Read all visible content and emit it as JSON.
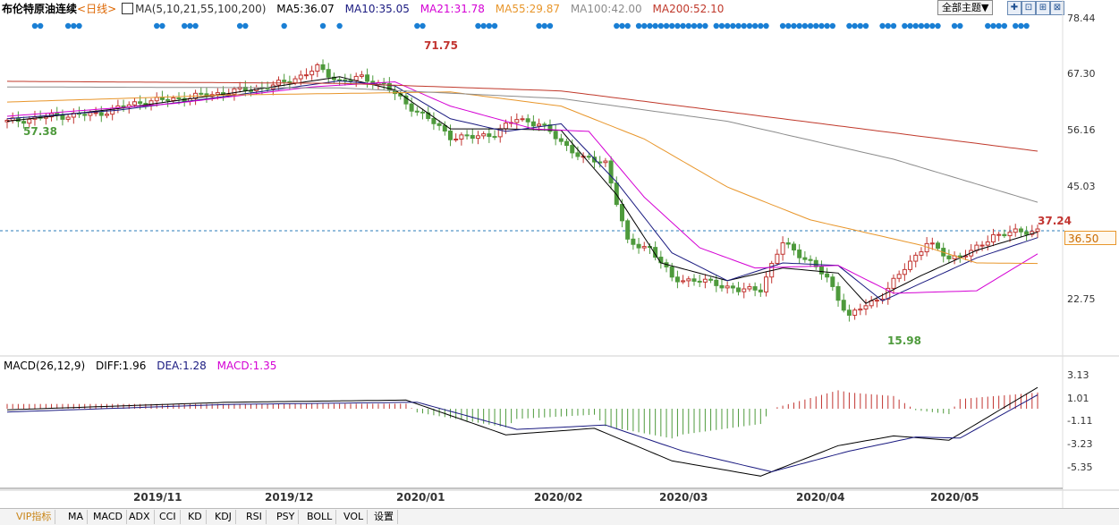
{
  "header": {
    "title": "布伦特原油连续",
    "period": "<日线>",
    "ma_label": "MA(5,10,21,55,100,200)",
    "ma5": "MA5:36.07",
    "ma10": "MA10:35.05",
    "ma21": "MA21:31.78",
    "ma55": "MA55:29.87",
    "ma100": "MA100:42.00",
    "ma200": "MA200:52.10"
  },
  "toolbar": {
    "theme_label": "全部主题▼",
    "buttons": [
      "✚",
      "⊡",
      "⊞",
      "⊠"
    ]
  },
  "colors": {
    "ma5": "#000000",
    "ma10": "#1a1a80",
    "ma21": "#d400d4",
    "ma55": "#e8962b",
    "ma100": "#8c8c8c",
    "ma200": "#c0392b",
    "up": "#c23531",
    "down": "#4e9a3c",
    "dot": "#1a7fd4"
  },
  "price_axis": [
    "78.44",
    "67.30",
    "56.16",
    "45.03",
    "22.75"
  ],
  "current_price_label": "36.50",
  "annotations": {
    "high": "71.75",
    "low": "15.98",
    "start_low": "57.38",
    "last_high": "37.24"
  },
  "macd": {
    "header": "MACD(26,12,9)",
    "diff": "DIFF:1.96",
    "dea": "DEA:1.28",
    "macd": "MACD:1.35",
    "axis": [
      "3.13",
      "1.01",
      "-1.11",
      "-3.23",
      "-5.35"
    ]
  },
  "x_axis": [
    "2019/11",
    "2019/12",
    "2020/01",
    "2020/02",
    "2020/03",
    "2020/04",
    "2020/05"
  ],
  "tabs": [
    "VIP指标",
    "MA",
    "MACD",
    "ADX",
    "CCI",
    "KD",
    "KDJ",
    "RSI",
    "PSY",
    "BOLL",
    "VOL",
    "设置"
  ],
  "chart_data": {
    "type": "candlestick",
    "title": "布伦特原油连续",
    "ylim": [
      14,
      80
    ],
    "approx_close_path": [
      [
        0,
        57.9
      ],
      [
        8,
        59.0
      ],
      [
        16,
        59.4
      ],
      [
        24,
        61.8
      ],
      [
        32,
        62.6
      ],
      [
        40,
        63.8
      ],
      [
        48,
        65.0
      ],
      [
        52,
        66.5
      ],
      [
        56,
        68.5
      ],
      [
        60,
        66.0
      ],
      [
        64,
        66.6
      ],
      [
        68,
        65.2
      ],
      [
        72,
        61.5
      ],
      [
        76,
        58.5
      ],
      [
        80,
        55.0
      ],
      [
        84,
        54.8
      ],
      [
        88,
        55.6
      ],
      [
        92,
        58.5
      ],
      [
        96,
        57.5
      ],
      [
        100,
        54.0
      ],
      [
        104,
        50.5
      ],
      [
        108,
        50.0
      ],
      [
        112,
        34.0
      ],
      [
        116,
        33.0
      ],
      [
        120,
        27.0
      ],
      [
        124,
        26.5
      ],
      [
        128,
        26.0
      ],
      [
        132,
        24.5
      ],
      [
        136,
        25.0
      ],
      [
        140,
        34.0
      ],
      [
        144,
        31.0
      ],
      [
        148,
        27.0
      ],
      [
        152,
        19.3
      ],
      [
        154,
        21.0
      ],
      [
        158,
        23.5
      ],
      [
        162,
        29.0
      ],
      [
        166,
        34.0
      ],
      [
        170,
        31.0
      ],
      [
        174,
        32.0
      ],
      [
        178,
        35.5
      ],
      [
        182,
        36.0
      ],
      [
        186,
        36.5
      ]
    ],
    "series": [
      {
        "name": "MA5",
        "values": [
          [
            0,
            58.0
          ],
          [
            20,
            60.5
          ],
          [
            40,
            63.5
          ],
          [
            60,
            66.8
          ],
          [
            70,
            64.2
          ],
          [
            80,
            56.5
          ],
          [
            90,
            56.5
          ],
          [
            100,
            56.2
          ],
          [
            110,
            43.5
          ],
          [
            118,
            30.0
          ],
          [
            130,
            26.5
          ],
          [
            140,
            29.0
          ],
          [
            150,
            28.0
          ],
          [
            155,
            22.0
          ],
          [
            165,
            27.5
          ],
          [
            175,
            32.5
          ],
          [
            186,
            36.1
          ]
        ]
      },
      {
        "name": "MA10",
        "values": [
          [
            0,
            58.5
          ],
          [
            20,
            60.2
          ],
          [
            40,
            63.0
          ],
          [
            60,
            66.0
          ],
          [
            70,
            65.0
          ],
          [
            80,
            58.5
          ],
          [
            90,
            56.0
          ],
          [
            100,
            57.5
          ],
          [
            110,
            46.0
          ],
          [
            120,
            32.0
          ],
          [
            130,
            26.5
          ],
          [
            140,
            30.0
          ],
          [
            150,
            29.5
          ],
          [
            158,
            22.5
          ],
          [
            165,
            26.0
          ],
          [
            175,
            31.0
          ],
          [
            186,
            35.0
          ]
        ]
      },
      {
        "name": "MA21",
        "values": [
          [
            0,
            59.0
          ],
          [
            30,
            61.5
          ],
          [
            55,
            64.8
          ],
          [
            70,
            65.8
          ],
          [
            80,
            61.0
          ],
          [
            95,
            56.5
          ],
          [
            105,
            56.0
          ],
          [
            115,
            43.0
          ],
          [
            125,
            33.0
          ],
          [
            135,
            29.0
          ],
          [
            150,
            29.5
          ],
          [
            160,
            24.0
          ],
          [
            175,
            24.5
          ],
          [
            186,
            31.8
          ]
        ]
      },
      {
        "name": "MA55",
        "values": [
          [
            0,
            61.8
          ],
          [
            40,
            63.2
          ],
          [
            80,
            63.8
          ],
          [
            100,
            61.0
          ],
          [
            115,
            54.5
          ],
          [
            130,
            45.0
          ],
          [
            145,
            38.5
          ],
          [
            165,
            33.5
          ],
          [
            175,
            30.0
          ],
          [
            186,
            29.9
          ]
        ]
      },
      {
        "name": "MA100",
        "values": [
          [
            0,
            64.8
          ],
          [
            60,
            64.6
          ],
          [
            100,
            62.5
          ],
          [
            130,
            58.0
          ],
          [
            160,
            50.5
          ],
          [
            186,
            42.0
          ]
        ]
      },
      {
        "name": "MA200",
        "values": [
          [
            0,
            65.9
          ],
          [
            60,
            65.5
          ],
          [
            100,
            64.0
          ],
          [
            140,
            58.5
          ],
          [
            186,
            52.1
          ]
        ]
      }
    ],
    "macd_series": [
      {
        "name": "DIFF",
        "values": [
          [
            0,
            -0.1
          ],
          [
            40,
            0.6
          ],
          [
            72,
            0.8
          ],
          [
            90,
            -2.4
          ],
          [
            106,
            -1.8
          ],
          [
            120,
            -4.8
          ],
          [
            136,
            -6.2
          ],
          [
            150,
            -3.4
          ],
          [
            160,
            -2.5
          ],
          [
            170,
            -2.9
          ],
          [
            186,
            1.96
          ]
        ]
      },
      {
        "name": "DEA",
        "values": [
          [
            0,
            -0.3
          ],
          [
            40,
            0.4
          ],
          [
            74,
            0.6
          ],
          [
            92,
            -1.9
          ],
          [
            108,
            -1.5
          ],
          [
            122,
            -3.9
          ],
          [
            138,
            -5.8
          ],
          [
            152,
            -3.9
          ],
          [
            164,
            -2.6
          ],
          [
            172,
            -2.7
          ],
          [
            186,
            1.28
          ]
        ]
      }
    ]
  }
}
